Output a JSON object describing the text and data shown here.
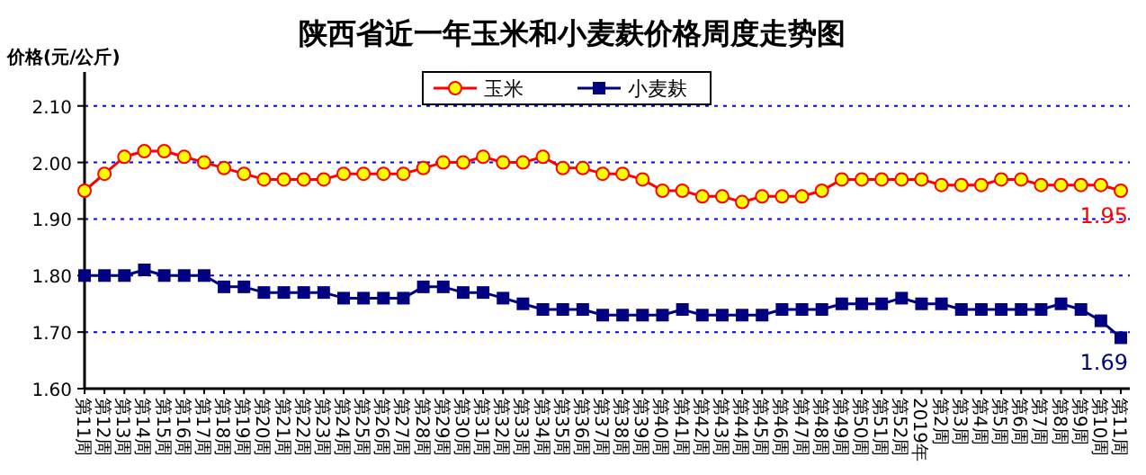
{
  "chart_data": {
    "type": "line",
    "title": "陕西省近一年玉米和小麦麸价格周度走势图",
    "ylabel": "价格(元/公斤)",
    "categories": [
      "第11周",
      "第12周",
      "第13周",
      "第14周",
      "第15周",
      "第16周",
      "第17周",
      "第18周",
      "第19周",
      "第20周",
      "第21周",
      "第22周",
      "第23周",
      "第24周",
      "第25周",
      "第26周",
      "第27周",
      "第28周",
      "第29周",
      "第30周",
      "第31周",
      "第32周",
      "第33周",
      "第34周",
      "第35周",
      "第36周",
      "第37周",
      "第38周",
      "第39周",
      "第40周",
      "第41周",
      "第42周",
      "第43周",
      "第44周",
      "第45周",
      "第46周",
      "第47周",
      "第48周",
      "第49周",
      "第50周",
      "第51周",
      "第52周",
      "2019年",
      "第2周",
      "第3周",
      "第4周",
      "第5周",
      "第6周",
      "第7周",
      "第8周",
      "第9周",
      "第10周",
      "第11周"
    ],
    "series": [
      {
        "name": "玉米",
        "color": "#ff0000",
        "marker": "circle",
        "values": [
          1.95,
          1.98,
          2.01,
          2.02,
          2.02,
          2.01,
          2.0,
          1.99,
          1.98,
          1.97,
          1.97,
          1.97,
          1.97,
          1.98,
          1.98,
          1.98,
          1.98,
          1.99,
          2.0,
          2.0,
          2.01,
          2.0,
          2.0,
          2.01,
          1.99,
          1.99,
          1.98,
          1.98,
          1.97,
          1.95,
          1.95,
          1.94,
          1.94,
          1.93,
          1.94,
          1.94,
          1.94,
          1.95,
          1.97,
          1.97,
          1.97,
          1.97,
          1.97,
          1.96,
          1.96,
          1.96,
          1.97,
          1.97,
          1.96,
          1.96,
          1.96,
          1.96,
          1.95
        ],
        "value_labels": [
          null,
          null,
          null,
          null,
          null,
          null,
          null,
          null,
          null,
          null,
          null,
          null,
          null,
          null,
          null,
          null,
          null,
          null,
          null,
          null,
          null,
          null,
          null,
          null,
          null,
          null,
          null,
          null,
          null,
          null,
          null,
          null,
          null,
          null,
          null,
          null,
          null,
          null,
          null,
          null,
          null,
          null,
          null,
          null,
          null,
          null,
          null,
          null,
          null,
          null,
          null,
          null,
          "1.95"
        ]
      },
      {
        "name": "小麦麸",
        "color": "#000080",
        "marker": "square",
        "values": [
          1.8,
          1.8,
          1.8,
          1.81,
          1.8,
          1.8,
          1.8,
          1.78,
          1.78,
          1.77,
          1.77,
          1.77,
          1.77,
          1.76,
          1.76,
          1.76,
          1.76,
          1.78,
          1.78,
          1.77,
          1.77,
          1.76,
          1.75,
          1.74,
          1.74,
          1.74,
          1.73,
          1.73,
          1.73,
          1.73,
          1.74,
          1.73,
          1.73,
          1.73,
          1.73,
          1.74,
          1.74,
          1.74,
          1.75,
          1.75,
          1.75,
          1.76,
          1.75,
          1.75,
          1.74,
          1.74,
          1.74,
          1.74,
          1.74,
          1.75,
          1.74,
          1.72,
          1.69
        ],
        "value_labels": [
          null,
          null,
          null,
          null,
          null,
          null,
          null,
          null,
          null,
          null,
          null,
          null,
          null,
          null,
          null,
          null,
          null,
          null,
          null,
          null,
          null,
          null,
          null,
          null,
          null,
          null,
          null,
          null,
          null,
          null,
          null,
          null,
          null,
          null,
          null,
          null,
          null,
          null,
          null,
          null,
          null,
          null,
          null,
          null,
          null,
          null,
          null,
          null,
          null,
          null,
          null,
          null,
          "1.69"
        ]
      }
    ],
    "ylim": [
      1.6,
      2.16
    ],
    "yticks": [
      {
        "value": 1.6,
        "label": "1.60"
      },
      {
        "value": 1.7,
        "label": "1.70"
      },
      {
        "value": 1.8,
        "label": "1.80"
      },
      {
        "value": 1.9,
        "label": "1.90"
      },
      {
        "value": 2.0,
        "label": "2.00"
      },
      {
        "value": 2.1,
        "label": "2.10"
      }
    ],
    "grid": "y",
    "legend": "top"
  }
}
